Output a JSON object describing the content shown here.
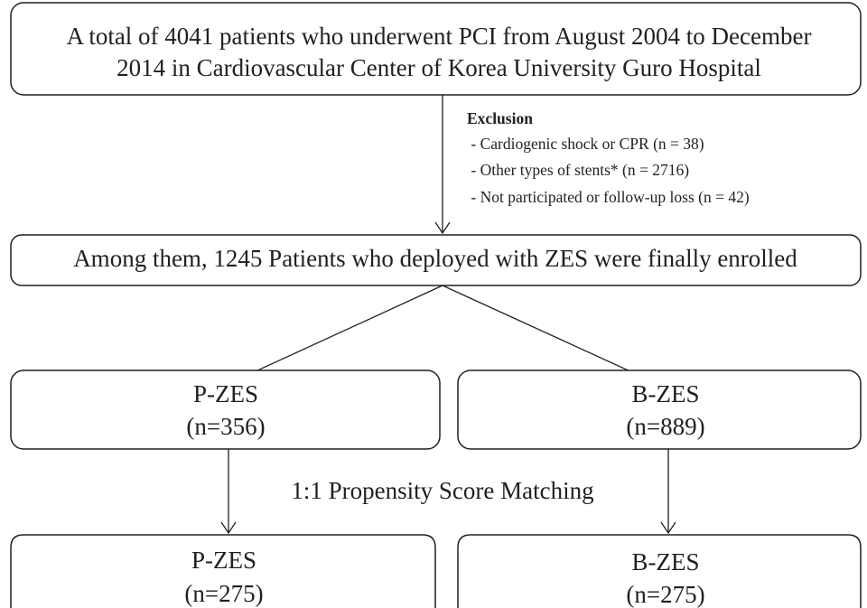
{
  "nodes": [
    {
      "lines": [
        "A total of 4041 patients who underwent PCI from August 2004 to December",
        "2014 in Cardiovascular Center of Korea University Guro Hospital"
      ]
    },
    {
      "lines": [
        "Among them, 1245 Patients who deployed with ZES were finally enrolled"
      ]
    },
    {
      "lines": [
        "P-ZES",
        "(n=356)"
      ]
    },
    {
      "lines": [
        "B-ZES",
        "(n=889)"
      ]
    },
    {
      "lines": [
        "P-ZES",
        "(n=275)"
      ]
    },
    {
      "lines": [
        "B-ZES",
        "(n=275)"
      ]
    }
  ],
  "exclusion": {
    "title": "Exclusion",
    "items": [
      " - Cardiogenic shock or CPR (n = 38)",
      " - Other types of stents* (n = 2716)",
      " - Not participated or follow-up loss (n = 42)"
    ]
  },
  "matching_label": "1:1 Propensity Score Matching"
}
